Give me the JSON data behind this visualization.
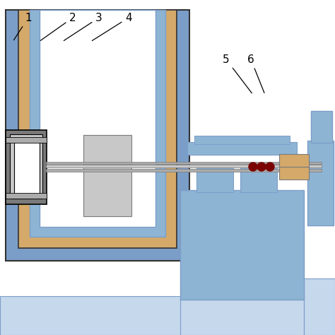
{
  "colors": {
    "blue_outer": "#7B9EC8",
    "blue_mid": "#8EB4D4",
    "blue_light": "#AECAE0",
    "blue_very_light": "#C5D8EC",
    "tan": "#D4A96A",
    "gray_dark": "#7A7A7A",
    "gray_mid": "#ABABAB",
    "gray_light": "#C8C8C8",
    "white": "#FFFFFF",
    "black": "#000000",
    "dark_red": "#7B0000",
    "line": "#333333"
  }
}
